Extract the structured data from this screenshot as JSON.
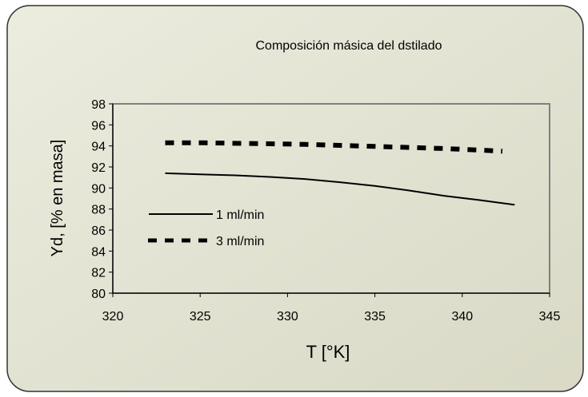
{
  "chart_data": {
    "type": "line",
    "title": "Composición másica del dstilado",
    "xlabel": "T [°K]",
    "ylabel": "Yd, [% en masa]",
    "xlim": [
      320,
      345
    ],
    "ylim": [
      80,
      98
    ],
    "x_ticks": [
      320,
      325,
      330,
      335,
      340,
      345
    ],
    "y_ticks": [
      80,
      82,
      84,
      86,
      88,
      90,
      92,
      94,
      96,
      98
    ],
    "grid": false,
    "legend_position": "left-center",
    "series": [
      {
        "name": "1 ml/min",
        "style": "solid",
        "color": "#000000",
        "x": [
          323,
          325,
          327,
          329,
          331,
          333,
          335,
          337,
          339,
          341,
          343
        ],
        "y": [
          91.4,
          91.3,
          91.2,
          91.05,
          90.85,
          90.55,
          90.2,
          89.75,
          89.25,
          88.85,
          88.4
        ]
      },
      {
        "name": "3 ml/min",
        "style": "dashed",
        "color": "#000000",
        "x": [
          323,
          325,
          327,
          329,
          331,
          333,
          335,
          337,
          339,
          341,
          342.3
        ],
        "y": [
          94.3,
          94.3,
          94.25,
          94.2,
          94.15,
          94.05,
          93.95,
          93.85,
          93.75,
          93.6,
          93.5
        ]
      }
    ]
  }
}
